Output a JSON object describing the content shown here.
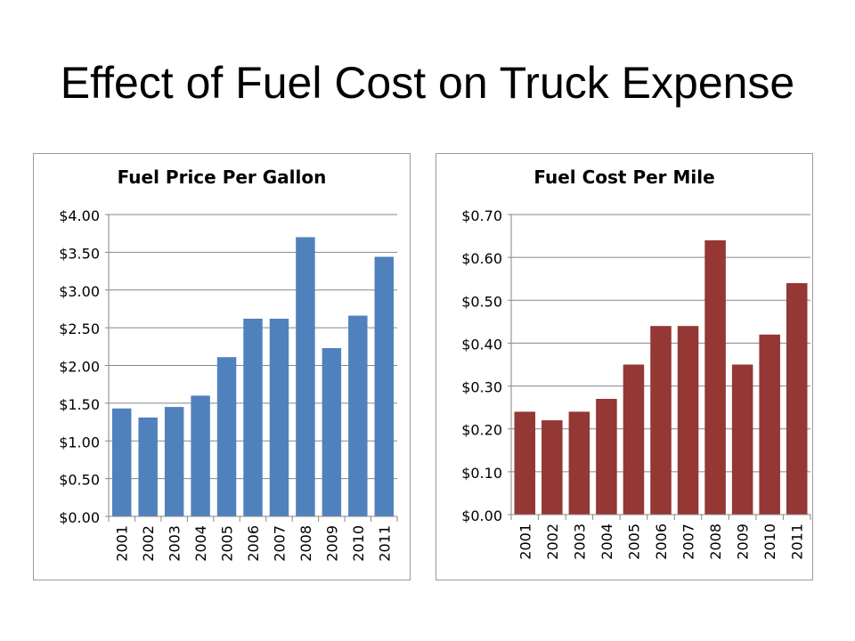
{
  "slide": {
    "title": "Effect of Fuel Cost on Truck Expense"
  },
  "chart_data": [
    {
      "type": "bar",
      "title": "Fuel Price Per Gallon",
      "categories": [
        "2001",
        "2002",
        "2003",
        "2004",
        "2005",
        "2006",
        "2007",
        "2008",
        "2009",
        "2010",
        "2011"
      ],
      "values": [
        1.43,
        1.31,
        1.45,
        1.6,
        2.11,
        2.62,
        2.62,
        3.7,
        2.23,
        2.66,
        3.44
      ],
      "ylim": [
        0,
        4
      ],
      "yticks": [
        0,
        0.5,
        1,
        1.5,
        2,
        2.5,
        3,
        3.5,
        4
      ],
      "ytick_labels": [
        "$0.00",
        "$0.50",
        "$1.00",
        "$1.50",
        "$2.00",
        "$2.50",
        "$3.00",
        "$3.50",
        "$4.00"
      ],
      "color": "#4f81bd",
      "grid": true,
      "xlabel": "",
      "ylabel": ""
    },
    {
      "type": "bar",
      "title": "Fuel Cost Per Mile",
      "categories": [
        "2001",
        "2002",
        "2003",
        "2004",
        "2005",
        "2006",
        "2007",
        "2008",
        "2009",
        "2010",
        "2011"
      ],
      "values": [
        0.24,
        0.22,
        0.24,
        0.27,
        0.35,
        0.44,
        0.44,
        0.64,
        0.35,
        0.42,
        0.54
      ],
      "ylim": [
        0,
        0.7
      ],
      "yticks": [
        0,
        0.1,
        0.2,
        0.3,
        0.4,
        0.5,
        0.6,
        0.7
      ],
      "ytick_labels": [
        "$0.00",
        "$0.10",
        "$0.20",
        "$0.30",
        "$0.40",
        "$0.50",
        "$0.60",
        "$0.70"
      ],
      "color": "#953735",
      "grid": true,
      "xlabel": "",
      "ylabel": ""
    }
  ]
}
